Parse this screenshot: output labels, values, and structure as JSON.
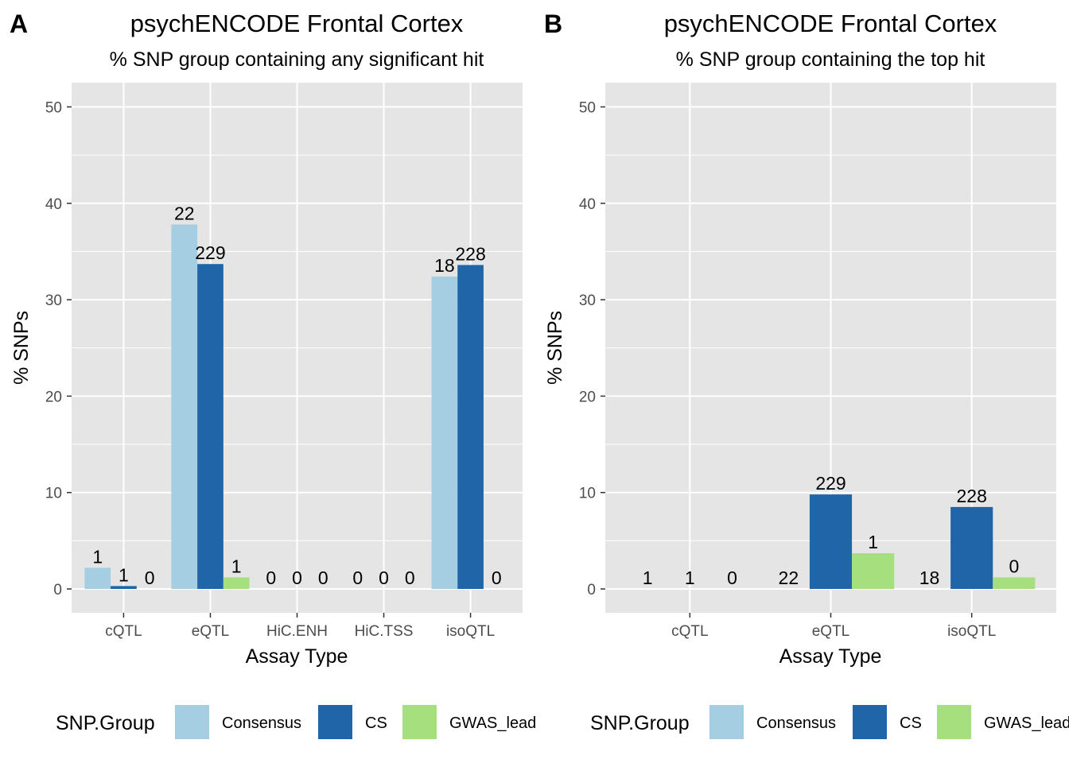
{
  "colors": {
    "panel_bg": "#e5e5e5",
    "grid": "#ffffff",
    "Consensus": "#a6cee3",
    "CS": "#1f65a8",
    "GWAS_lead": "#a6e07e"
  },
  "legend": {
    "title": "SNP.Group",
    "entries": [
      "Consensus",
      "CS",
      "GWAS_lead"
    ]
  },
  "chart_data": [
    {
      "type": "bar",
      "panel_label": "A",
      "title": "psychENCODE Frontal Cortex",
      "subtitle": "% SNP group containing any significant hit",
      "xlabel": "Assay Type",
      "ylabel": "% SNPs",
      "ylim": [
        0,
        50
      ],
      "yticks": [
        0,
        10,
        20,
        30,
        40,
        50
      ],
      "grid": true,
      "legend_position": "bottom",
      "categories": [
        "cQTL",
        "eQTL",
        "HiC.ENH",
        "HiC.TSS",
        "isoQTL"
      ],
      "series": [
        {
          "name": "Consensus",
          "values": [
            2.2,
            37.8,
            0,
            0,
            32.4
          ],
          "labels": [
            "1",
            "22",
            "0",
            "0",
            "18"
          ]
        },
        {
          "name": "CS",
          "values": [
            0.3,
            33.7,
            0,
            0,
            33.6
          ],
          "labels": [
            "1",
            "229",
            "0",
            "0",
            "228"
          ]
        },
        {
          "name": "GWAS_lead",
          "values": [
            0,
            1.2,
            0,
            0,
            0
          ],
          "labels": [
            "0",
            "1",
            "0",
            "0",
            "0"
          ]
        }
      ]
    },
    {
      "type": "bar",
      "panel_label": "B",
      "title": "psychENCODE Frontal Cortex",
      "subtitle": "% SNP group containing the top hit",
      "xlabel": "Assay Type",
      "ylabel": "% SNPs",
      "ylim": [
        0,
        50
      ],
      "yticks": [
        0,
        10,
        20,
        30,
        40,
        50
      ],
      "grid": true,
      "legend_position": "bottom",
      "categories": [
        "cQTL",
        "eQTL",
        "isoQTL"
      ],
      "series": [
        {
          "name": "Consensus",
          "values": [
            0,
            0,
            0
          ],
          "labels": [
            "1",
            "22",
            "18"
          ]
        },
        {
          "name": "CS",
          "values": [
            0,
            9.8,
            8.5
          ],
          "labels": [
            "1",
            "229",
            "228"
          ]
        },
        {
          "name": "GWAS_lead",
          "values": [
            0,
            3.7,
            1.2
          ],
          "labels": [
            "0",
            "1",
            "0"
          ]
        }
      ]
    }
  ]
}
